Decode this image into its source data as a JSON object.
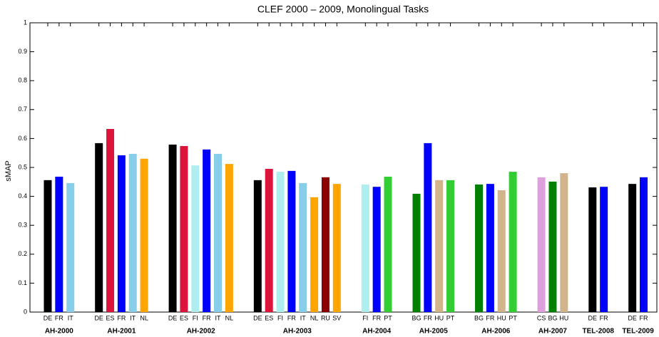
{
  "chart_data": {
    "type": "bar",
    "title": "CLEF 2000 – 2009, Monolingual Tasks",
    "y_label": "sMAP",
    "ylim": [
      0,
      1
    ],
    "yticks": [
      0,
      0.1,
      0.2,
      0.3,
      0.4,
      0.5,
      0.6,
      0.7,
      0.8,
      0.9,
      1
    ],
    "grid": false,
    "groups": [
      {
        "name": "AH-2000",
        "categories": [
          "DE",
          "FR",
          "IT"
        ],
        "values": [
          0.456,
          0.468,
          0.446
        ],
        "colors": [
          "#000000",
          "#0000ff",
          "#87ceeb"
        ]
      },
      {
        "name": "AH-2001",
        "categories": [
          "DE",
          "ES",
          "FR",
          "IT",
          "NL"
        ],
        "values": [
          0.584,
          0.633,
          0.542,
          0.547,
          0.53
        ],
        "colors": [
          "#000000",
          "#dc143c",
          "#0000ff",
          "#87ceeb",
          "#ffa500"
        ]
      },
      {
        "name": "AH-2002",
        "categories": [
          "DE",
          "ES",
          "FI",
          "FR",
          "IT",
          "NL"
        ],
        "values": [
          0.579,
          0.574,
          0.507,
          0.562,
          0.547,
          0.512
        ],
        "colors": [
          "#000000",
          "#dc143c",
          "#afeeee",
          "#0000ff",
          "#87ceeb",
          "#ffa500"
        ]
      },
      {
        "name": "AH-2003",
        "categories": [
          "DE",
          "ES",
          "FI",
          "FR",
          "IT",
          "NL",
          "RU",
          "SV"
        ],
        "values": [
          0.456,
          0.495,
          0.485,
          0.488,
          0.446,
          0.397,
          0.466,
          0.443
        ],
        "colors": [
          "#000000",
          "#dc143c",
          "#afeeee",
          "#0000ff",
          "#87ceeb",
          "#ffa500",
          "#8b0000",
          "#ffa500"
        ]
      },
      {
        "name": "AH-2004",
        "categories": [
          "FI",
          "FR",
          "PT"
        ],
        "values": [
          0.441,
          0.433,
          0.468
        ],
        "colors": [
          "#afeeee",
          "#0000ff",
          "#32cd32"
        ]
      },
      {
        "name": "AH-2005",
        "categories": [
          "BG",
          "FR",
          "HU",
          "PT"
        ],
        "values": [
          0.409,
          0.584,
          0.456,
          0.456
        ],
        "colors": [
          "#008000",
          "#0000ff",
          "#d2b48c",
          "#32cd32"
        ]
      },
      {
        "name": "AH-2006",
        "categories": [
          "BG",
          "FR",
          "HU",
          "PT"
        ],
        "values": [
          0.441,
          0.443,
          0.421,
          0.485
        ],
        "colors": [
          "#008000",
          "#0000ff",
          "#d2b48c",
          "#32cd32"
        ]
      },
      {
        "name": "AH-2007",
        "categories": [
          "CS",
          "BG",
          "HU"
        ],
        "values": [
          0.466,
          0.451,
          0.48
        ],
        "colors": [
          "#dda0dd",
          "#008000",
          "#d2b48c"
        ]
      },
      {
        "name": "TEL-2008",
        "categories": [
          "DE",
          "FR"
        ],
        "values": [
          0.431,
          0.433
        ],
        "colors": [
          "#000000",
          "#0000ff"
        ]
      },
      {
        "name": "TEL-2009",
        "categories": [
          "DE",
          "FR"
        ],
        "values": [
          0.443,
          0.466
        ],
        "colors": [
          "#000000",
          "#0000ff"
        ]
      }
    ]
  }
}
